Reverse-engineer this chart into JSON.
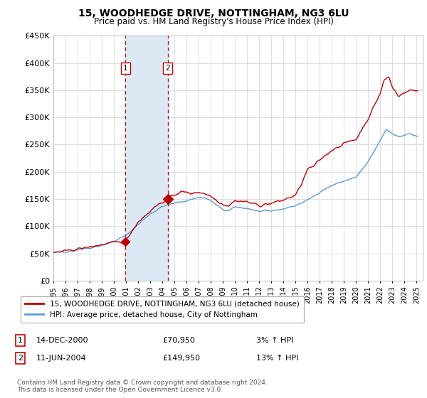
{
  "title": "15, WOODHEDGE DRIVE, NOTTINGHAM, NG3 6LU",
  "subtitle": "Price paid vs. HM Land Registry's House Price Index (HPI)",
  "legend_line1": "15, WOODHEDGE DRIVE, NOTTINGHAM, NG3 6LU (detached house)",
  "legend_line2": "HPI: Average price, detached house, City of Nottingham",
  "footnote": "Contains HM Land Registry data © Crown copyright and database right 2024.\nThis data is licensed under the Open Government Licence v3.0.",
  "sale1_label": "1",
  "sale1_date": "14-DEC-2000",
  "sale1_price": "£70,950",
  "sale1_hpi": "3% ↑ HPI",
  "sale2_label": "2",
  "sale2_date": "11-JUN-2004",
  "sale2_price": "£149,950",
  "sale2_hpi": "13% ↑ HPI",
  "sale1_x": 2000.958,
  "sale1_y": 70950,
  "sale2_x": 2004.44,
  "sale2_y": 149950,
  "ylim": [
    0,
    450000
  ],
  "yticks": [
    0,
    50000,
    100000,
    150000,
    200000,
    250000,
    300000,
    350000,
    400000,
    450000
  ],
  "ytick_labels": [
    "£0",
    "£50K",
    "£100K",
    "£150K",
    "£200K",
    "£250K",
    "£300K",
    "£350K",
    "£400K",
    "£450K"
  ],
  "hpi_color": "#5b9bd5",
  "price_color": "#c00000",
  "shade_color": "#dce9f5",
  "bg_color": "#ffffff",
  "grid_color": "#d0d0d0",
  "xlim_left": 1995.0,
  "xlim_right": 2025.5
}
